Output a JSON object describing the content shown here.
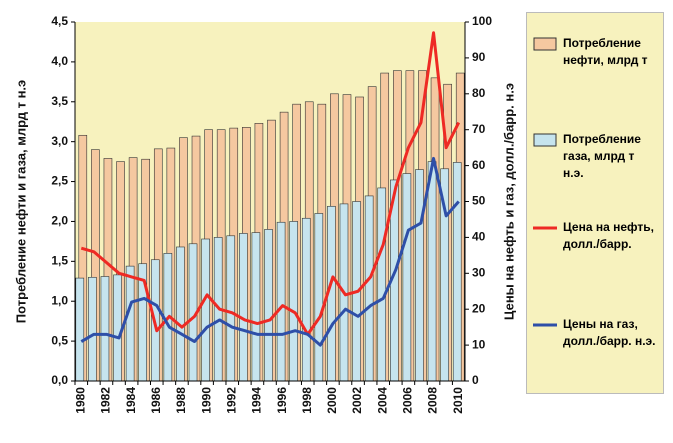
{
  "chart_data": {
    "type": "bar",
    "categories": [
      "1980",
      null,
      "1982",
      null,
      "1984",
      null,
      "1986",
      null,
      "1988",
      null,
      "1990",
      null,
      "1992",
      null,
      "1994",
      null,
      "1996",
      null,
      "1998",
      null,
      "2000",
      null,
      "2002",
      null,
      "2004",
      null,
      "2006",
      null,
      "2008",
      null,
      "2010"
    ],
    "y_label": "Потребление нефти и газа, млрд т н.э",
    "y2_label": "Цены на нефть и газ, долл./барр. н.э",
    "ylim": [
      0,
      4.5
    ],
    "yticks": [
      {
        "value": 0,
        "label": "0,0"
      },
      {
        "value": 0.5,
        "label": "0,5"
      },
      {
        "value": 1,
        "label": "1,0"
      },
      {
        "value": 1.5,
        "label": "1,5"
      },
      {
        "value": 2,
        "label": "2,0"
      },
      {
        "value": 2.5,
        "label": "2,5"
      },
      {
        "value": 3,
        "label": "3,0"
      },
      {
        "value": 3.5,
        "label": "3,5"
      },
      {
        "value": 4,
        "label": "4,0"
      },
      {
        "value": 4.5,
        "label": "4,5"
      }
    ],
    "y2lim": [
      0,
      100
    ],
    "y2ticks": [
      0,
      10,
      20,
      30,
      40,
      50,
      60,
      70,
      80,
      90,
      100
    ],
    "series": [
      {
        "name": "Потребление нефти, млрд т",
        "type": "bar",
        "color": "#f5c8a0",
        "values": [
          3.08,
          2.9,
          2.79,
          2.75,
          2.8,
          2.78,
          2.91,
          2.92,
          3.05,
          3.07,
          3.15,
          3.15,
          3.17,
          3.18,
          3.23,
          3.27,
          3.37,
          3.47,
          3.5,
          3.47,
          3.6,
          3.59,
          3.56,
          3.69,
          3.86,
          3.89,
          3.89,
          3.89,
          3.8,
          3.72,
          3.86
        ]
      },
      {
        "name": "Потребление газа, млрд т н.э.",
        "type": "bar",
        "color": "#c6e4ee",
        "values": [
          1.29,
          1.3,
          1.31,
          1.33,
          1.44,
          1.47,
          1.52,
          1.6,
          1.68,
          1.72,
          1.78,
          1.8,
          1.82,
          1.85,
          1.86,
          1.9,
          1.99,
          2.0,
          2.04,
          2.1,
          2.19,
          2.22,
          2.25,
          2.32,
          2.42,
          2.52,
          2.6,
          2.65,
          2.75,
          2.66,
          2.74
        ]
      },
      {
        "name": "Цена на нефть, долл./барр.",
        "type": "line",
        "axis": "y2",
        "color": "#ee2a24",
        "values": [
          37,
          36,
          33,
          30,
          29,
          28,
          14,
          18,
          15,
          18,
          24,
          20,
          19,
          17,
          16,
          17,
          21,
          19,
          13,
          18,
          29,
          24,
          25,
          29,
          38,
          54,
          65,
          72,
          97,
          65,
          72
        ]
      },
      {
        "name": "Цены на газ, долл./барр. н.э.",
        "type": "line",
        "axis": "y2",
        "color": "#2e4fa8",
        "values": [
          11,
          13,
          13,
          12,
          22,
          23,
          21,
          15,
          13,
          11,
          15,
          17,
          15,
          14,
          13,
          13,
          13,
          14,
          13,
          10,
          16,
          20,
          18,
          21,
          23,
          31,
          42,
          44,
          62,
          46,
          50
        ]
      }
    ]
  }
}
